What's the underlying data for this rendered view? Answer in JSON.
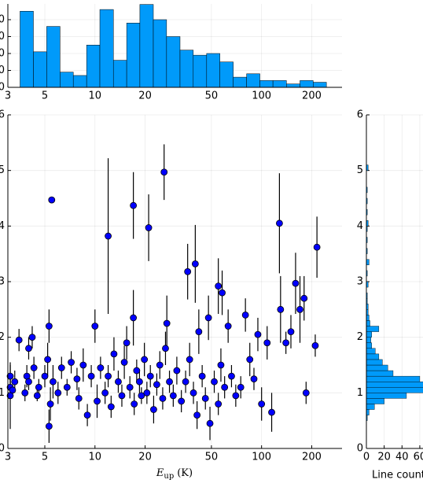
{
  "chart_data": [
    {
      "type": "histogram",
      "orientation": "vertical",
      "color": "#009afa",
      "log_x": true,
      "grid": true,
      "bins": [
        3.55,
        4.27,
        5.13,
        6.17,
        7.41,
        8.91,
        10.7,
        12.9,
        15.5,
        18.6,
        22.4,
        26.9,
        32.4,
        38.9,
        46.8,
        56.2,
        67.6,
        81.3,
        97.7,
        117,
        141,
        170,
        204,
        245
      ],
      "values": [
        45,
        21,
        36,
        9,
        7,
        25,
        46,
        16,
        38,
        49,
        40,
        30,
        22,
        19,
        20,
        15,
        6,
        8,
        4,
        4,
        2,
        4,
        3
      ],
      "xlim": [
        3,
        304
      ],
      "xticks": [
        3,
        5,
        10,
        20,
        50,
        100,
        200
      ],
      "ylim": [
        0,
        49.3
      ],
      "yticks": [
        0,
        10,
        20,
        30,
        40
      ]
    },
    {
      "type": "scatter",
      "color": "#0000ff",
      "log_x": true,
      "grid": true,
      "xlabel": {
        "symbol": "E",
        "subscript": "up",
        "unit": "(K)"
      },
      "x": [
        5.5,
        12,
        17,
        21,
        26,
        36,
        40,
        55,
        58,
        128,
        130,
        160,
        170,
        215,
        210,
        180,
        185,
        115,
        100,
        5.3,
        10,
        17,
        27,
        48,
        42,
        3.1,
        5.3,
        3.1,
        3.1,
        3.2,
        3.3,
        3.5,
        3.8,
        3.9,
        4.0,
        4.0,
        4.2,
        4.3,
        4.5,
        4.6,
        5.0,
        5.2,
        5.4,
        5.6,
        6.0,
        6.3,
        6.8,
        7.2,
        7.8,
        8.0,
        8.5,
        9.0,
        9.5,
        10.3,
        10.8,
        11.5,
        12.0,
        12.5,
        13.0,
        13.8,
        14.5,
        15.0,
        15.5,
        16.2,
        17.2,
        17.8,
        18.5,
        19.0,
        19.8,
        20.5,
        21.5,
        22.5,
        23.5,
        24.5,
        25.5,
        26.5,
        28.0,
        29.5,
        31.0,
        33.0,
        35.0,
        37.0,
        39.0,
        41.0,
        44.0,
        46.0,
        49.0,
        52.0,
        55.0,
        57.0,
        60.0,
        63.0,
        66.0,
        70.0,
        75.0,
        80.0,
        85.0,
        90.0,
        95.0,
        108.0,
        140.0,
        150.0
      ],
      "y": [
        4.47,
        3.82,
        4.37,
        3.97,
        4.97,
        3.18,
        3.32,
        2.92,
        2.8,
        4.05,
        2.5,
        2.97,
        2.5,
        3.62,
        1.85,
        2.7,
        1.0,
        0.65,
        0.8,
        2.2,
        2.2,
        2.35,
        2.25,
        2.35,
        2.1,
        0.95,
        0.4,
        1.1,
        1.3,
        1.05,
        1.2,
        1.95,
        1.0,
        1.3,
        1.2,
        1.8,
        2.0,
        1.45,
        0.95,
        1.1,
        1.3,
        1.6,
        0.8,
        1.2,
        1.0,
        1.45,
        1.1,
        1.55,
        1.25,
        0.9,
        1.5,
        0.6,
        1.3,
        0.85,
        1.45,
        1.0,
        1.3,
        0.75,
        1.7,
        1.2,
        0.95,
        1.55,
        1.9,
        1.1,
        0.8,
        1.4,
        1.2,
        0.95,
        1.6,
        1.0,
        1.3,
        0.7,
        1.15,
        1.5,
        0.9,
        1.8,
        1.2,
        0.95,
        1.4,
        0.85,
        1.2,
        1.6,
        1.0,
        0.6,
        1.3,
        0.9,
        0.45,
        1.2,
        0.8,
        1.5,
        1.1,
        2.2,
        1.3,
        0.95,
        1.1,
        2.4,
        1.6,
        1.25,
        2.05,
        1.9,
        1.9,
        2.1
      ],
      "err": [
        0.05,
        1.4,
        0.6,
        0.6,
        0.5,
        0.5,
        0.7,
        0.5,
        0.4,
        0.9,
        0.6,
        0.55,
        0.6,
        0.55,
        0.2,
        0.4,
        0.2,
        0.35,
        0.3,
        0.3,
        0.3,
        0.5,
        0.5,
        0.4,
        0.4,
        0.6,
        0.3,
        0.15,
        0.2,
        0.1,
        0.2,
        0.2,
        0.15,
        0.2,
        0.15,
        0.2,
        0.2,
        0.2,
        0.1,
        0.15,
        0.2,
        0.3,
        0.3,
        0.3,
        0.2,
        0.2,
        0.15,
        0.2,
        0.2,
        0.2,
        0.3,
        0.2,
        0.2,
        0.3,
        0.2,
        0.2,
        0.2,
        0.2,
        0.3,
        0.2,
        0.2,
        0.3,
        0.3,
        0.2,
        0.2,
        0.2,
        0.2,
        0.15,
        0.3,
        0.2,
        0.2,
        0.25,
        0.2,
        0.25,
        0.2,
        0.3,
        0.2,
        0.2,
        0.25,
        0.2,
        0.2,
        0.3,
        0.2,
        0.25,
        0.2,
        0.2,
        0.3,
        0.2,
        0.2,
        0.3,
        0.2,
        0.3,
        0.2,
        0.2,
        0.2,
        0.3,
        0.3,
        0.2,
        0.3,
        0.3,
        0.2,
        0.3
      ],
      "xlim": [
        3,
        304
      ],
      "xticks": [
        3,
        5,
        10,
        20,
        50,
        100,
        200
      ],
      "ylim": [
        0,
        6
      ],
      "yticks": [
        0,
        1,
        2,
        3,
        4,
        5,
        6
      ]
    },
    {
      "type": "histogram",
      "orientation": "horizontal",
      "color": "#009afa",
      "grid": true,
      "xlabel": "Line count",
      "bins": [
        0.5,
        0.6,
        0.7,
        0.8,
        0.9,
        1.0,
        1.1,
        1.2,
        1.3,
        1.4,
        1.5,
        1.6,
        1.7,
        1.8,
        1.9,
        2.0,
        2.1,
        2.2,
        2.3,
        2.4,
        2.5,
        2.6,
        2.7,
        2.8,
        2.9,
        3.0,
        3.1,
        3.2,
        3.3,
        3.4,
        3.5,
        3.6,
        3.7,
        3.8,
        3.9,
        4.0,
        4.1,
        4.2,
        4.3,
        4.4,
        4.5,
        4.6,
        4.7,
        4.8,
        4.9,
        5.0,
        5.1
      ],
      "values": [
        1,
        3,
        9,
        20,
        45,
        65,
        70,
        60,
        30,
        24,
        18,
        14,
        10,
        6,
        5,
        6,
        14,
        4,
        3,
        2,
        2,
        1,
        1,
        0,
        2,
        0,
        1,
        0,
        3,
        0,
        1,
        0,
        1,
        0,
        1,
        2,
        0,
        1,
        0,
        1,
        0,
        1,
        0,
        0,
        0,
        2
      ],
      "xlim": [
        0,
        63.6
      ],
      "xticks": [
        0,
        20,
        40,
        60
      ],
      "ylim": [
        0,
        6
      ],
      "yticks": [
        0,
        1,
        2,
        3,
        4,
        5,
        6
      ]
    }
  ]
}
